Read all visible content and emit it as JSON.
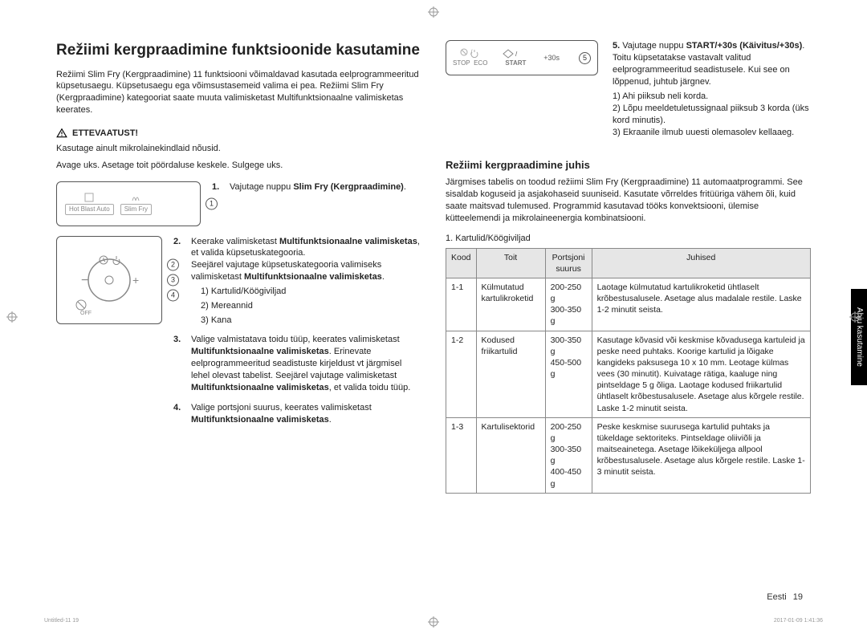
{
  "title": "Režiimi kergpraadimine funktsioonide kasutamine",
  "intro": "Režiimi Slim Fry (Kergpraadimine) 11 funktsiooni võimaldavad kasutada eelprogrammeeritud küpsetusaegu. Küpsetusaegu ega võimsustasemeid valima ei pea. Režiimi Slim Fry (Kergpraadimine) kategooriat saate muuta valimisketast Multifunktsionaalne valimisketas keerates.",
  "caution_label": "ETTEVAATUST!",
  "caution_text": "Kasutage ainult mikrolainekindlaid nõusid.",
  "open_door": "Avage uks. Asetage toit pöördaluse keskele. Sulgege uks.",
  "panel1": {
    "btn_left": "Hot Blast Auto",
    "btn_right": "Slim Fry"
  },
  "panel3": {
    "stop": "STOP",
    "eco": "ECO",
    "start": "START",
    "plus30": "+30s"
  },
  "steps": {
    "s1": {
      "n": "1.",
      "t": "Vajutage nuppu ",
      "bold": "Slim Fry (Kergpraadimine)",
      "end": "."
    },
    "s2": {
      "n": "2.",
      "l1a": "Keerake valimisketast ",
      "l1b": "Multifunktsionaalne valimisketas",
      "l1c": ", et valida küpsetuskategooria.",
      "l2a": "Seejärel vajutage küpsetuskategooria valimiseks valimisketast ",
      "l2b": "Multifunktsionaalne valimisketas",
      "l2c": ".",
      "sub1": "1)  Kartulid/Köögiviljad",
      "sub2": "2)  Mereannid",
      "sub3": "3)  Kana"
    },
    "s3": {
      "n": "3.",
      "l1": "Valige valmistatava toidu tüüp, keerates valimisketast ",
      "l1b": "Multifunktsionaalne valimisketas",
      "l1c": ". Erinevate eelprogrammeeritud seadistuste kirjeldust vt järgmisel lehel olevast tabelist. Seejärel vajutage valimisketast ",
      "l1d": "Multifunktsionaalne valimisketas",
      "l1e": ", et valida toidu tüüp."
    },
    "s4": {
      "n": "4.",
      "l1": "Valige portsjoni suurus, keerates valimisketast ",
      "l1b": "Multifunktsionaalne valimisketas",
      "l1c": "."
    },
    "s5": {
      "n": "5.",
      "l1": "Vajutage nuppu ",
      "l1b": "START/+30s (Käivitus/+30s)",
      "l1c": ". Toitu küpsetatakse vastavalt valitud eelprogrammeeritud seadistusele. Kui see on lõppenud, juhtub järgnev.",
      "sub1": "1)  Ahi piiksub neli korda.",
      "sub2": "2)  Lõpu meeldetuletussignaal piiksub 3 korda (üks kord minutis).",
      "sub3": "3)  Ekraanile ilmub uuesti olemasolev kellaaeg."
    }
  },
  "h2": "Režiimi kergpraadimine juhis",
  "desc2": "Järgmises tabelis on toodud režiimi Slim Fry (Kergpraadimine) 11 automaatprogrammi. See sisaldab koguseid ja asjakohaseid suuniseid. Kasutate võrreldes fritüüriga vähem õli, kuid saate maitsvad tulemused. Programmid kasutavad tööks konvektsiooni, ülemise kütteelemendi ja mikrolaineenergia kombinatsiooni.",
  "table_caption": "1. Kartulid/Köögiviljad",
  "table": {
    "headers": {
      "code": "Kood",
      "food": "Toit",
      "portion": "Portsjoni suurus",
      "instr": "Juhised"
    },
    "rows": [
      {
        "code": "1-1",
        "food": "Külmutatud kartulikroketid",
        "portion": "200-250 g\n300-350 g",
        "instr": "Laotage külmutatud kartulikroketid ühtlaselt krõbestusalusele. Asetage alus madalale restile. Laske 1-2 minutit seista."
      },
      {
        "code": "1-2",
        "food": "Kodused friikartulid",
        "portion": "300-350 g\n450-500 g",
        "instr": "Kasutage kõvasid või keskmise kõvadusega kartuleid ja peske need puhtaks. Koorige kartulid ja lõigake kangideks paksusega 10 x 10 mm. Leotage külmas vees (30 minutit). Kuivatage rätiga, kaaluge ning pintseldage 5 g õliga. Laotage kodused friikartulid ühtlaselt krõbestusalusele. Asetage alus kõrgele restile. Laske 1-2 minutit seista."
      },
      {
        "code": "1-3",
        "food": "Kartulisektorid",
        "portion": "200-250 g\n300-350 g\n400-450 g",
        "instr": "Peske keskmise suurusega kartulid puhtaks ja tükeldage sektoriteks. Pintseldage oliiviõli ja maitseainetega. Asetage lõikeküljega allpool krõbestusalusele. Asetage alus kõrgele restile. Laske 1-3 minutit seista."
      }
    ]
  },
  "side_tab": "Ahju kasutamine",
  "footer": {
    "lang": "Eesti",
    "page": "19"
  },
  "meta": {
    "left": "Untitled-11   19",
    "right": "2017-01-09   1:41:36"
  },
  "colors": {
    "text": "#222222",
    "border": "#888888",
    "thead_bg": "#e6e6e6",
    "tab_bg": "#000000",
    "tab_fg": "#ffffff",
    "muted": "#888888"
  }
}
